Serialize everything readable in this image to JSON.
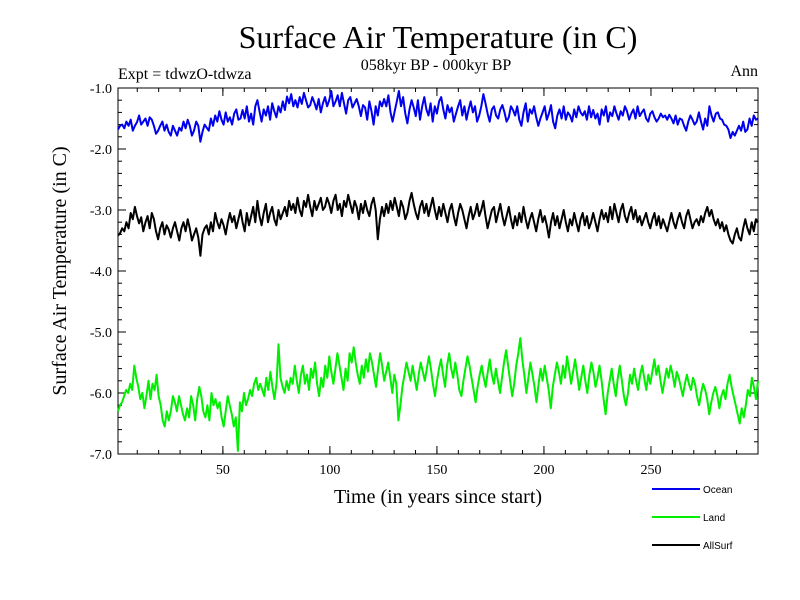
{
  "chart_data": {
    "type": "line",
    "title": "Surface Air Temperature (in C)",
    "subtitle": "058kyr BP - 000kyr BP",
    "left_note": "Expt = tdwzO-tdwza",
    "right_note": "Ann",
    "xlabel": "Time (in years since start)",
    "ylabel": "Surface Air Temperature (in C)",
    "xlim": [
      1,
      300
    ],
    "ylim": [
      -7.0,
      -1.0
    ],
    "x_ticks": [
      50,
      100,
      150,
      200,
      250
    ],
    "x_tick_labels": [
      "50",
      "100",
      "150",
      "200",
      "250"
    ],
    "y_ticks": [
      -1.0,
      -2.0,
      -3.0,
      -4.0,
      -5.0,
      -6.0,
      -7.0
    ],
    "y_tick_labels": [
      "-1.0",
      "-2.0",
      "-3.0",
      "-4.0",
      "-5.0",
      "-6.0",
      "-7.0"
    ],
    "series": [
      {
        "name": "Ocean",
        "color": "#0000ee",
        "values": [
          -1.68,
          -1.62,
          -1.6,
          -1.66,
          -1.55,
          -1.62,
          -1.52,
          -1.7,
          -1.62,
          -1.56,
          -1.45,
          -1.6,
          -1.55,
          -1.5,
          -1.62,
          -1.48,
          -1.52,
          -1.62,
          -1.75,
          -1.7,
          -1.62,
          -1.55,
          -1.7,
          -1.6,
          -1.72,
          -1.78,
          -1.62,
          -1.7,
          -1.78,
          -1.65,
          -1.7,
          -1.55,
          -1.66,
          -1.52,
          -1.62,
          -1.78,
          -1.7,
          -1.55,
          -1.62,
          -1.88,
          -1.72,
          -1.6,
          -1.65,
          -1.7,
          -1.5,
          -1.62,
          -1.45,
          -1.55,
          -1.38,
          -1.52,
          -1.6,
          -1.4,
          -1.55,
          -1.48,
          -1.6,
          -1.42,
          -1.35,
          -1.52,
          -1.5,
          -1.36,
          -1.5,
          -1.3,
          -1.55,
          -1.42,
          -1.6,
          -1.3,
          -1.2,
          -1.38,
          -1.55,
          -1.35,
          -1.45,
          -1.3,
          -1.52,
          -1.25,
          -1.38,
          -1.48,
          -1.3,
          -1.4,
          -1.22,
          -1.36,
          -1.14,
          -1.25,
          -1.1,
          -1.3,
          -1.2,
          -1.32,
          -1.15,
          -1.26,
          -1.08,
          -1.2,
          -1.32,
          -1.28,
          -1.15,
          -1.24,
          -1.35,
          -1.18,
          -1.4,
          -1.25,
          -1.15,
          -1.3,
          -1.2,
          -1.05,
          -1.3,
          -1.22,
          -1.12,
          -1.3,
          -1.08,
          -1.25,
          -1.42,
          -1.2,
          -1.15,
          -1.32,
          -1.25,
          -1.18,
          -1.3,
          -1.46,
          -1.28,
          -1.32,
          -1.52,
          -1.22,
          -1.38,
          -1.6,
          -1.3,
          -1.45,
          -1.22,
          -1.3,
          -1.18,
          -1.3,
          -1.12,
          -1.4,
          -1.55,
          -1.38,
          -1.22,
          -1.05,
          -1.3,
          -1.15,
          -1.42,
          -1.58,
          -1.35,
          -1.2,
          -1.32,
          -1.46,
          -1.2,
          -1.52,
          -1.3,
          -1.15,
          -1.35,
          -1.45,
          -1.25,
          -1.55,
          -1.3,
          -1.42,
          -1.22,
          -1.15,
          -1.35,
          -1.5,
          -1.28,
          -1.4,
          -1.32,
          -1.55,
          -1.42,
          -1.3,
          -1.2,
          -1.45,
          -1.3,
          -1.52,
          -1.35,
          -1.22,
          -1.4,
          -1.3,
          -1.55,
          -1.45,
          -1.3,
          -1.1,
          -1.25,
          -1.42,
          -1.55,
          -1.35,
          -1.3,
          -1.45,
          -1.5,
          -1.35,
          -1.28,
          -1.4,
          -1.55,
          -1.48,
          -1.3,
          -1.36,
          -1.45,
          -1.3,
          -1.52,
          -1.62,
          -1.4,
          -1.25,
          -1.55,
          -1.35,
          -1.42,
          -1.3,
          -1.48,
          -1.62,
          -1.5,
          -1.4,
          -1.3,
          -1.52,
          -1.42,
          -1.28,
          -1.55,
          -1.66,
          -1.45,
          -1.35,
          -1.5,
          -1.3,
          -1.52,
          -1.4,
          -1.45,
          -1.55,
          -1.35,
          -1.48,
          -1.3,
          -1.4,
          -1.45,
          -1.38,
          -1.52,
          -1.3,
          -1.48,
          -1.36,
          -1.5,
          -1.42,
          -1.6,
          -1.35,
          -1.45,
          -1.3,
          -1.55,
          -1.4,
          -1.46,
          -1.3,
          -1.42,
          -1.52,
          -1.38,
          -1.45,
          -1.3,
          -1.38,
          -1.52,
          -1.42,
          -1.35,
          -1.5,
          -1.3,
          -1.46,
          -1.4,
          -1.35,
          -1.5,
          -1.55,
          -1.42,
          -1.38,
          -1.48,
          -1.55,
          -1.5,
          -1.42,
          -1.48,
          -1.45,
          -1.52,
          -1.44,
          -1.5,
          -1.58,
          -1.45,
          -1.6,
          -1.5,
          -1.52,
          -1.62,
          -1.7,
          -1.55,
          -1.45,
          -1.52,
          -1.6,
          -1.55,
          -1.4,
          -1.55,
          -1.68,
          -1.5,
          -1.62,
          -1.3,
          -1.45,
          -1.55,
          -1.42,
          -1.4,
          -1.5,
          -1.52,
          -1.6,
          -1.62,
          -1.68,
          -1.82,
          -1.72,
          -1.78,
          -1.7,
          -1.62,
          -1.7,
          -1.55,
          -1.72,
          -1.68,
          -1.5,
          -1.62,
          -1.45,
          -1.52,
          -1.5
        ]
      },
      {
        "name": "Land",
        "color": "#00ee00",
        "values": [
          -6.3,
          -6.2,
          -6.15,
          -6.05,
          -5.95,
          -6.0,
          -5.85,
          -5.95,
          -5.55,
          -5.75,
          -5.9,
          -6.1,
          -6.0,
          -6.25,
          -6.05,
          -5.8,
          -6.1,
          -5.85,
          -5.95,
          -5.7,
          -6.05,
          -6.2,
          -6.45,
          -6.55,
          -6.3,
          -6.45,
          -6.3,
          -6.05,
          -6.15,
          -6.3,
          -6.05,
          -6.2,
          -6.35,
          -6.45,
          -6.25,
          -6.4,
          -6.05,
          -6.2,
          -6.45,
          -6.1,
          -5.9,
          -6.05,
          -6.3,
          -6.4,
          -6.2,
          -6.45,
          -6.0,
          -6.2,
          -6.1,
          -6.25,
          -6.15,
          -6.4,
          -6.55,
          -6.3,
          -6.05,
          -6.2,
          -6.35,
          -6.55,
          -6.4,
          -6.95,
          -6.15,
          -6.3,
          -6.0,
          -6.2,
          -6.1,
          -5.95,
          -6.05,
          -5.85,
          -5.75,
          -5.95,
          -5.85,
          -5.95,
          -6.05,
          -5.75,
          -5.95,
          -5.65,
          -5.9,
          -6.1,
          -5.85,
          -5.2,
          -5.75,
          -5.9,
          -6.0,
          -5.8,
          -5.95,
          -5.75,
          -5.85,
          -5.55,
          -5.8,
          -6.0,
          -5.7,
          -5.55,
          -5.85,
          -5.7,
          -5.95,
          -5.6,
          -5.75,
          -5.5,
          -5.85,
          -6.05,
          -5.75,
          -5.9,
          -5.55,
          -5.75,
          -5.4,
          -5.65,
          -5.85,
          -5.6,
          -5.35,
          -5.55,
          -5.75,
          -5.95,
          -5.6,
          -5.8,
          -5.35,
          -5.5,
          -5.25,
          -5.5,
          -5.7,
          -5.85,
          -5.55,
          -5.75,
          -5.45,
          -5.65,
          -5.35,
          -5.5,
          -5.7,
          -5.9,
          -5.6,
          -5.35,
          -5.55,
          -5.8,
          -5.65,
          -5.5,
          -5.75,
          -6.0,
          -5.7,
          -5.85,
          -6.45,
          -6.2,
          -5.9,
          -5.7,
          -5.5,
          -5.65,
          -5.8,
          -5.55,
          -5.75,
          -5.95,
          -5.7,
          -5.5,
          -5.65,
          -5.8,
          -5.6,
          -5.4,
          -5.6,
          -5.85,
          -6.05,
          -5.8,
          -5.6,
          -5.45,
          -5.7,
          -5.9,
          -5.55,
          -5.35,
          -5.6,
          -5.75,
          -5.5,
          -5.7,
          -5.95,
          -6.05,
          -5.8,
          -5.6,
          -5.4,
          -5.55,
          -5.75,
          -5.95,
          -6.15,
          -5.9,
          -5.7,
          -5.55,
          -5.75,
          -5.9,
          -5.65,
          -5.45,
          -5.7,
          -5.85,
          -5.6,
          -5.8,
          -6.0,
          -5.75,
          -5.5,
          -5.3,
          -5.55,
          -5.8,
          -6.05,
          -5.85,
          -5.55,
          -5.35,
          -5.1,
          -5.45,
          -5.7,
          -6.0,
          -5.75,
          -5.5,
          -5.7,
          -5.9,
          -6.15,
          -5.85,
          -5.6,
          -5.8,
          -5.55,
          -5.75,
          -5.95,
          -6.25,
          -5.9,
          -5.7,
          -5.5,
          -5.65,
          -5.85,
          -5.55,
          -5.75,
          -5.4,
          -5.6,
          -5.85,
          -5.65,
          -5.45,
          -5.7,
          -5.95,
          -5.75,
          -5.55,
          -5.8,
          -6.0,
          -5.7,
          -5.5,
          -5.65,
          -5.9,
          -5.75,
          -5.55,
          -5.8,
          -6.1,
          -6.35,
          -6.0,
          -5.8,
          -5.6,
          -5.85,
          -6.05,
          -5.75,
          -5.55,
          -5.8,
          -6.05,
          -6.2,
          -6.0,
          -5.7,
          -5.85,
          -5.6,
          -5.8,
          -5.95,
          -5.7,
          -5.55,
          -5.75,
          -5.95,
          -5.7,
          -5.85,
          -5.65,
          -5.45,
          -5.7,
          -5.55,
          -5.8,
          -6.0,
          -5.8,
          -5.6,
          -5.75,
          -5.55,
          -5.7,
          -5.9,
          -5.65,
          -5.75,
          -5.9,
          -6.05,
          -5.85,
          -5.7,
          -5.85,
          -5.95,
          -5.75,
          -5.85,
          -6.05,
          -6.2,
          -6.0,
          -5.85,
          -5.95,
          -6.1,
          -6.35,
          -6.15,
          -6.0,
          -5.9,
          -6.05,
          -6.25,
          -6.05,
          -5.95,
          -6.1,
          -5.85,
          -5.7,
          -5.9,
          -6.05,
          -6.2,
          -6.35,
          -6.5,
          -6.25,
          -6.4,
          -6.2,
          -5.95,
          -6.05,
          -5.75,
          -5.9,
          -6.1,
          -5.8
        ]
      },
      {
        "name": "AllSurf",
        "color": "#000000",
        "values": [
          -3.42,
          -3.38,
          -3.3,
          -3.35,
          -3.2,
          -3.3,
          -3.05,
          -3.15,
          -2.95,
          -3.1,
          -3.22,
          -3.12,
          -3.35,
          -3.2,
          -3.1,
          -3.3,
          -3.05,
          -3.15,
          -3.35,
          -3.48,
          -3.3,
          -3.2,
          -3.4,
          -3.25,
          -3.32,
          -3.45,
          -3.3,
          -3.2,
          -3.35,
          -3.5,
          -3.3,
          -3.2,
          -3.35,
          -3.15,
          -3.3,
          -3.5,
          -3.4,
          -3.3,
          -3.45,
          -3.75,
          -3.4,
          -3.3,
          -3.25,
          -3.4,
          -3.2,
          -3.35,
          -3.05,
          -3.2,
          -3.3,
          -3.15,
          -3.25,
          -3.4,
          -3.2,
          -3.05,
          -3.2,
          -3.1,
          -3.3,
          -3.15,
          -3.0,
          -3.2,
          -3.35,
          -3.05,
          -3.25,
          -3.1,
          -2.95,
          -3.2,
          -2.85,
          -3.1,
          -3.25,
          -3.05,
          -2.9,
          -3.2,
          -3.05,
          -2.95,
          -3.15,
          -3.25,
          -3.0,
          -3.15,
          -3.05,
          -2.95,
          -3.1,
          -2.85,
          -3.0,
          -2.9,
          -3.05,
          -2.8,
          -3.0,
          -3.1,
          -2.85,
          -2.95,
          -2.75,
          -2.95,
          -3.1,
          -2.85,
          -3.0,
          -2.9,
          -2.8,
          -3.0,
          -2.95,
          -2.8,
          -2.9,
          -3.05,
          -2.85,
          -2.75,
          -3.0,
          -2.9,
          -3.1,
          -2.85,
          -2.95,
          -2.75,
          -2.9,
          -3.05,
          -2.85,
          -2.95,
          -3.15,
          -2.9,
          -3.05,
          -2.85,
          -3.0,
          -3.1,
          -2.9,
          -2.8,
          -3.0,
          -3.48,
          -3.15,
          -2.95,
          -3.1,
          -2.9,
          -3.05,
          -2.85,
          -3.0,
          -2.8,
          -2.95,
          -3.1,
          -2.85,
          -2.95,
          -3.15,
          -3.05,
          -2.85,
          -2.72,
          -2.9,
          -3.05,
          -3.15,
          -2.95,
          -2.85,
          -3.05,
          -2.9,
          -3.1,
          -2.95,
          -2.8,
          -3.0,
          -3.15,
          -2.95,
          -3.1,
          -2.9,
          -3.05,
          -3.2,
          -3.0,
          -2.9,
          -3.1,
          -3.25,
          -3.05,
          -2.9,
          -3.0,
          -3.15,
          -3.3,
          -3.1,
          -2.95,
          -3.15,
          -3.05,
          -2.9,
          -3.1,
          -3.0,
          -2.85,
          -3.1,
          -3.3,
          -3.15,
          -3.0,
          -2.95,
          -3.2,
          -3.05,
          -2.9,
          -3.1,
          -3.25,
          -3.1,
          -2.95,
          -3.15,
          -3.3,
          -3.1,
          -3.25,
          -3.05,
          -3.2,
          -2.95,
          -3.15,
          -3.3,
          -3.15,
          -3.05,
          -3.2,
          -3.35,
          -3.15,
          -3.0,
          -3.2,
          -3.1,
          -3.25,
          -3.45,
          -3.2,
          -3.05,
          -3.25,
          -3.1,
          -3.3,
          -3.15,
          -3.0,
          -3.2,
          -3.35,
          -3.15,
          -3.25,
          -3.05,
          -3.2,
          -3.35,
          -3.15,
          -3.05,
          -3.25,
          -3.1,
          -3.3,
          -3.2,
          -3.05,
          -3.2,
          -3.35,
          -3.15,
          -3.0,
          -3.15,
          -3.05,
          -3.2,
          -2.95,
          -3.15,
          -2.9,
          -3.05,
          -3.2,
          -3.0,
          -2.9,
          -3.1,
          -3.2,
          -3.05,
          -2.95,
          -3.15,
          -3.0,
          -3.2,
          -3.1,
          -3.25,
          -3.15,
          -3.05,
          -3.2,
          -3.3,
          -3.15,
          -3.05,
          -3.25,
          -3.1,
          -3.3,
          -3.15,
          -3.25,
          -3.35,
          -3.2,
          -3.05,
          -3.2,
          -3.3,
          -3.15,
          -3.05,
          -3.2,
          -3.3,
          -3.1,
          -3.0,
          -3.15,
          -3.3,
          -3.2,
          -3.15,
          -3.25,
          -3.1,
          -3.2,
          -3.05,
          -2.95,
          -3.1,
          -3.0,
          -3.15,
          -3.25,
          -3.15,
          -3.3,
          -3.2,
          -3.35,
          -3.25,
          -3.4,
          -3.5,
          -3.55,
          -3.4,
          -3.3,
          -3.45,
          -3.5,
          -3.3,
          -3.15,
          -3.3,
          -3.4,
          -3.2,
          -3.35,
          -3.15,
          -3.2
        ]
      }
    ]
  }
}
